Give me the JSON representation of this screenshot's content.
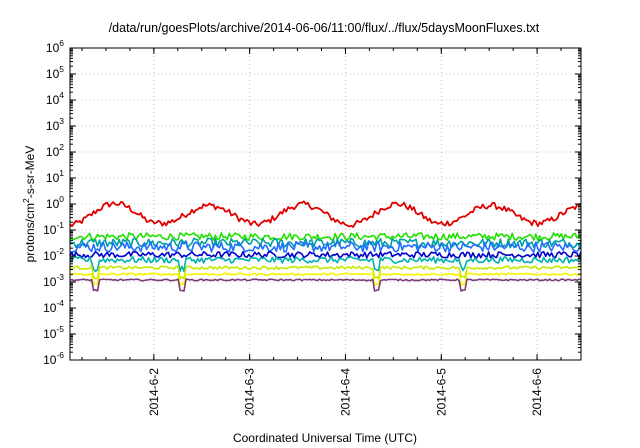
{
  "chart_data": {
    "type": "line",
    "title": "/data/run/goesPlots/archive/2014-06-06/11:00/flux/../flux/5daysMoonFluxes.txt",
    "xlabel": "Coordinated Universal Time (UTC)",
    "ylabel": {
      "prefix": "protons/cm",
      "exponent": "2",
      "suffix": "-s-sr-MeV"
    },
    "y_scale": "log",
    "ylim_exponents": [
      -6,
      6
    ],
    "y_ticks": [
      {
        "base": "10",
        "exp": "6"
      },
      {
        "base": "10",
        "exp": "5"
      },
      {
        "base": "10",
        "exp": "4"
      },
      {
        "base": "10",
        "exp": "3"
      },
      {
        "base": "10",
        "exp": "2"
      },
      {
        "base": "10",
        "exp": "1"
      },
      {
        "base": "10",
        "exp": "0"
      },
      {
        "base": "10",
        "exp": "-1"
      },
      {
        "base": "10",
        "exp": "-2"
      },
      {
        "base": "10",
        "exp": "-3"
      },
      {
        "base": "10",
        "exp": "-4"
      },
      {
        "base": "10",
        "exp": "-5"
      },
      {
        "base": "10",
        "exp": "-6"
      }
    ],
    "x_range": [
      "2014-06-01T03:00",
      "2014-06-06T11:00"
    ],
    "x_ticks": [
      "2014-6-2",
      "2014-6-3",
      "2014-6-4",
      "2014-6-5",
      "2014-6-6"
    ],
    "x_tick_dates": [
      "2014-06-02T00:00",
      "2014-06-03T00:00",
      "2014-06-04T00:00",
      "2014-06-05T00:00",
      "2014-06-06T00:00"
    ],
    "grid": true,
    "legend": "none",
    "series_template": [
      {
        "color": "#e00000",
        "base_exp": -0.3,
        "noise": 0.12,
        "wave": [
          0.42,
          0.34,
          0.38,
          0.4,
          0.34
        ]
      },
      {
        "color": "#22e000",
        "base_exp": -1.25,
        "noise": 0.14,
        "wave": [
          0.0,
          0.0,
          0.0,
          0.0,
          0.0
        ]
      },
      {
        "color": "#00a0a0",
        "base_exp": -1.5,
        "noise": 0.18,
        "wave": [
          0.0,
          0.0,
          0.0,
          0.0,
          0.0
        ]
      },
      {
        "color": "#1f6fff",
        "base_exp": -1.65,
        "noise": 0.2,
        "wave": [
          0.0,
          0.0,
          0.0,
          0.0,
          0.0
        ]
      },
      {
        "color": "#0000d0",
        "base_exp": -1.95,
        "noise": 0.12,
        "wave": [
          0.0,
          0.0,
          0.0,
          0.0,
          0.0
        ]
      },
      {
        "color": "#00b0b0",
        "base_exp": -2.15,
        "noise": 0.12,
        "wave": [
          0.0,
          0.0,
          0.0,
          0.0,
          0.0
        ]
      },
      {
        "color": "#c8e800",
        "base_exp": -2.45,
        "noise": 0.06,
        "wave": [
          0.0,
          0.0,
          0.0,
          0.0,
          0.0
        ]
      },
      {
        "color": "#f5f500",
        "base_exp": -2.7,
        "noise": 0.04,
        "wave": [
          0.0,
          0.0,
          0.0,
          0.0,
          0.0
        ]
      },
      {
        "color": "#7b3a7b",
        "base_exp": -2.92,
        "noise": 0.03,
        "wave": [
          0.0,
          0.0,
          0.0,
          0.0,
          0.0
        ]
      }
    ]
  }
}
